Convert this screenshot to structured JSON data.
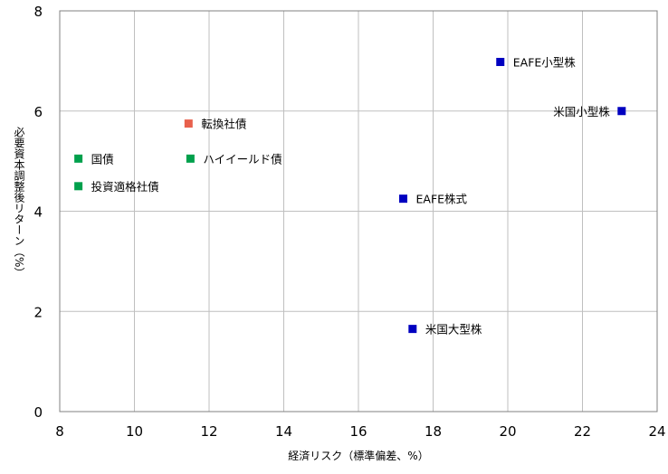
{
  "chart_data": {
    "type": "scatter",
    "title": "",
    "xlabel": "経済リスク（標準偏差、%）",
    "ylabel": "必要資本調整後リターン（%）",
    "xlim": [
      8,
      24
    ],
    "ylim": [
      0,
      8
    ],
    "xticks": [
      "8",
      "10",
      "12",
      "14",
      "16",
      "18",
      "20",
      "22",
      "24"
    ],
    "yticks": [
      "0",
      "2",
      "4",
      "6",
      "8"
    ],
    "grid": true,
    "colors": {
      "green": "#00a04c",
      "red": "#e8604c",
      "blue": "#0000c0"
    },
    "points": [
      {
        "label": "国債",
        "x": 8.5,
        "y": 5.05,
        "color": "green",
        "label_side": "right"
      },
      {
        "label": "投資適格社債",
        "x": 8.5,
        "y": 4.5,
        "color": "green",
        "label_side": "right"
      },
      {
        "label": "転換社債",
        "x": 11.45,
        "y": 5.75,
        "color": "red",
        "label_side": "right"
      },
      {
        "label": "ハイイールド債",
        "x": 11.5,
        "y": 5.05,
        "color": "green",
        "label_side": "right"
      },
      {
        "label": "EAFE株式",
        "x": 17.2,
        "y": 4.25,
        "color": "blue",
        "label_side": "right"
      },
      {
        "label": "米国大型株",
        "x": 17.45,
        "y": 1.65,
        "color": "blue",
        "label_side": "right"
      },
      {
        "label": "EAFE小型株",
        "x": 19.8,
        "y": 6.98,
        "color": "blue",
        "label_side": "right"
      },
      {
        "label": "米国小型株",
        "x": 23.05,
        "y": 6.0,
        "color": "blue",
        "label_side": "left"
      }
    ]
  }
}
